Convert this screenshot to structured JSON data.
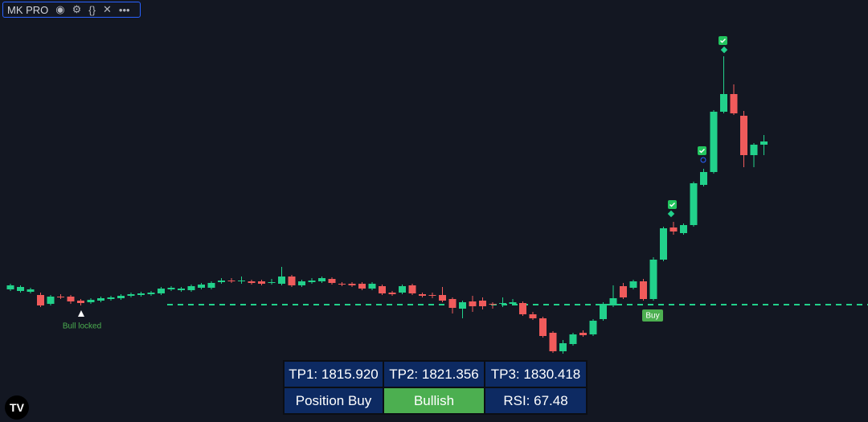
{
  "indicator": {
    "name": "MK PRO"
  },
  "chart_data": {
    "type": "candlestick",
    "ylim": [
      0,
      525
    ],
    "up_color": "#22d18b",
    "down_color": "#f05b5b",
    "entry_level": 146,
    "open": [
      165,
      163,
      162,
      158,
      147,
      156,
      156,
      151,
      149,
      151,
      153,
      154,
      157,
      158,
      159,
      160,
      165,
      164,
      164,
      167,
      167,
      174,
      176,
      175,
      175,
      175,
      173,
      172,
      181,
      170,
      174,
      175,
      178,
      172,
      172,
      172,
      166,
      169,
      161,
      161,
      170,
      159,
      158,
      158,
      153,
      141,
      150,
      151,
      147,
      147,
      147,
      148,
      134,
      129,
      111,
      88,
      97,
      111,
      109,
      128,
      145,
      169,
      167,
      175,
      153,
      202,
      242,
      235,
      245,
      295,
      311,
      386,
      408,
      381,
      332,
      345
    ],
    "high": [
      172,
      170,
      167,
      161,
      158,
      159,
      158,
      153,
      154,
      156,
      157,
      159,
      161,
      162,
      163,
      168,
      169,
      168,
      171,
      173,
      175,
      179,
      179,
      181,
      177,
      177,
      178,
      193,
      183,
      177,
      179,
      181,
      180,
      174,
      174,
      174,
      174,
      171,
      163,
      171,
      172,
      161,
      161,
      168,
      155,
      151,
      157,
      155,
      149,
      155,
      153,
      150,
      137,
      131,
      113,
      102,
      111,
      114,
      128,
      149,
      170,
      173,
      177,
      178,
      205,
      243,
      249,
      247,
      299,
      315,
      388,
      455,
      420,
      387,
      347,
      357
    ],
    "low": [
      163,
      161,
      160,
      143,
      145,
      153,
      147,
      145,
      147,
      149,
      151,
      152,
      155,
      156,
      157,
      158,
      163,
      162,
      162,
      165,
      165,
      172,
      173,
      172,
      171,
      170,
      171,
      170,
      168,
      168,
      172,
      173,
      171,
      169,
      168,
      164,
      164,
      158,
      157,
      159,
      158,
      155,
      154,
      149,
      135,
      129,
      137,
      140,
      141,
      143,
      145,
      132,
      127,
      105,
      86,
      85,
      95,
      106,
      107,
      126,
      143,
      153,
      165,
      151,
      151,
      200,
      233,
      233,
      243,
      293,
      309,
      384,
      382,
      317,
      317,
      332
    ],
    "close": [
      170,
      168,
      165,
      145,
      156,
      155,
      150,
      148,
      152,
      154,
      155,
      157,
      159,
      160,
      161,
      166,
      167,
      166,
      169,
      171,
      173,
      176,
      175,
      176,
      173,
      172,
      174,
      181,
      170,
      175,
      176,
      179,
      173,
      171,
      170,
      166,
      172,
      160,
      159,
      169,
      160,
      157,
      157,
      151,
      142,
      149,
      144,
      144,
      146,
      148,
      149,
      134,
      129,
      107,
      88,
      98,
      109,
      108,
      126,
      147,
      154,
      155,
      175,
      153,
      202,
      241,
      237,
      245,
      297,
      311,
      386,
      408,
      384,
      332,
      345,
      349
    ]
  },
  "annotations": {
    "bull_locked": "Bull locked",
    "buy": "Buy"
  },
  "table": {
    "rows": [
      [
        "TP1: 1815.920",
        "TP2: 1821.356",
        "TP3: 1830.418"
      ],
      [
        "Position Buy",
        "Bullish",
        "RSI: 67.48"
      ]
    ]
  }
}
